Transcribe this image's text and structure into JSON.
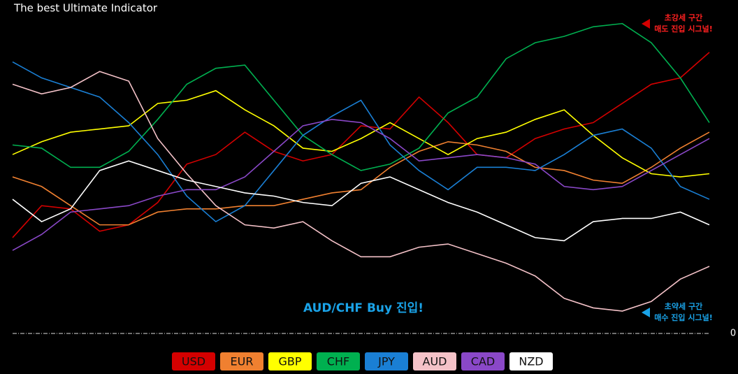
{
  "chart_data": {
    "type": "line",
    "title": "The best Ultimate Indicator",
    "annotations": {
      "strong_title": "초강세 구간",
      "strong_signal": "매도 진입 시그널!",
      "weak_title": "초약세 구간",
      "weak_signal": "매수 진입 시그널!",
      "trade": "AUD/CHF Buy 진입!"
    },
    "x": [
      0,
      1,
      2,
      3,
      4,
      5,
      6,
      7,
      8,
      9,
      10,
      11,
      12,
      13,
      14,
      15,
      16,
      17,
      18,
      19,
      20,
      21,
      22,
      23,
      24
    ],
    "xlim": [
      0,
      24
    ],
    "ylim": [
      0,
      100
    ],
    "yticks": [
      0
    ],
    "series": [
      {
        "name": "USD",
        "color": "#d40000",
        "values": [
          30,
          40,
          39,
          32,
          34,
          41,
          53,
          56,
          63,
          57,
          54,
          56,
          65,
          64,
          74,
          66,
          56,
          55,
          61,
          64,
          66,
          72,
          78,
          80,
          88
        ]
      },
      {
        "name": "EUR",
        "color": "#f08030",
        "values": [
          49,
          46,
          40,
          34,
          34,
          38,
          39,
          39,
          40,
          40,
          42,
          44,
          45,
          52,
          57,
          60,
          59,
          57,
          52,
          51,
          48,
          47,
          52,
          58,
          63
        ]
      },
      {
        "name": "GBP",
        "color": "#ffff00",
        "values": [
          56,
          60,
          63,
          64,
          65,
          72,
          73,
          76,
          70,
          65,
          58,
          57,
          61,
          66,
          61,
          56,
          61,
          63,
          67,
          70,
          62,
          55,
          50,
          49,
          50
        ]
      },
      {
        "name": "CHF",
        "color": "#00b050",
        "values": [
          59,
          58,
          52,
          52,
          57,
          67,
          78,
          83,
          84,
          73,
          62,
          56,
          51,
          53,
          58,
          69,
          74,
          86,
          91,
          93,
          96,
          97,
          91,
          80,
          66
        ]
      },
      {
        "name": "JPY",
        "color": "#1a7fd4",
        "values": [
          85,
          80,
          77,
          74,
          66,
          56,
          43,
          35,
          40,
          51,
          62,
          68,
          73,
          59,
          51,
          45,
          52,
          52,
          51,
          56,
          62,
          64,
          58,
          46,
          42
        ]
      },
      {
        "name": "AUD",
        "color": "#f4c2c8",
        "values": [
          78,
          75,
          77,
          82,
          79,
          61,
          50,
          40,
          34,
          33,
          35,
          29,
          24,
          24,
          27,
          28,
          25,
          22,
          18,
          11,
          8,
          7,
          10,
          17,
          21
        ]
      },
      {
        "name": "CAD",
        "color": "#8a48c8",
        "values": [
          26,
          31,
          38,
          39,
          40,
          43,
          45,
          45,
          49,
          57,
          65,
          67,
          66,
          61,
          54,
          55,
          56,
          55,
          53,
          46,
          45,
          46,
          51,
          56,
          61
        ]
      },
      {
        "name": "NZD",
        "color": "#ffffff",
        "values": [
          42,
          35,
          39,
          51,
          54,
          51,
          48,
          46,
          44,
          43,
          41,
          40,
          47,
          49,
          45,
          41,
          38,
          34,
          30,
          29,
          35,
          36,
          36,
          38,
          34
        ]
      }
    ]
  }
}
